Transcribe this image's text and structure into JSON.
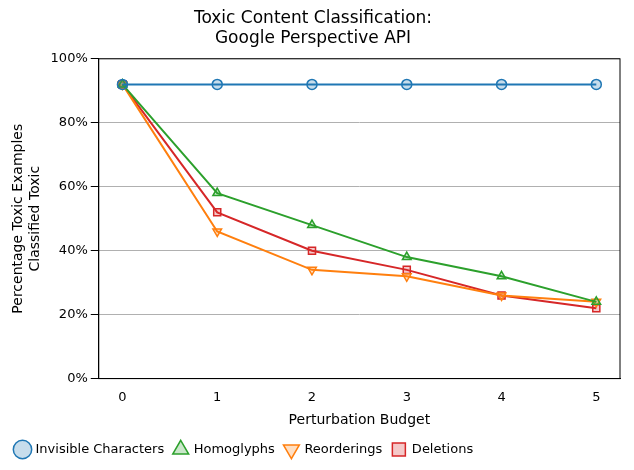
{
  "chart_data": {
    "type": "line",
    "title": "Toxic Content Classification:\nGoogle Perspective API",
    "x_label": "Perturbation Budget",
    "y_label": "Percentage Toxic Examples\nClassified Toxic",
    "x": [
      0,
      1,
      2,
      3,
      4,
      5
    ],
    "series": [
      {
        "name": "Invisible Characters",
        "color": "#1f77b4",
        "marker": "circle",
        "values": [
          92,
          92,
          92,
          92,
          92,
          92
        ]
      },
      {
        "name": "Homoglyphs",
        "color": "#2ca02c",
        "marker": "triangle",
        "values": [
          92,
          58,
          48,
          38,
          32,
          24
        ]
      },
      {
        "name": "Reorderings",
        "color": "#ff7f0e",
        "marker": "triangle_down",
        "values": [
          92,
          46,
          34,
          32,
          26,
          24
        ]
      },
      {
        "name": "Deletions",
        "color": "#d62728",
        "marker": "square",
        "values": [
          92,
          52,
          40,
          34,
          26,
          22
        ]
      }
    ],
    "xlim": [
      -0.25,
      5.25
    ],
    "xticks": [
      0,
      1,
      2,
      3,
      4,
      5
    ],
    "ylim": [
      0,
      100
    ],
    "yticks": [
      {
        "value": 0,
        "label": "0%"
      },
      {
        "value": 20,
        "label": "20%"
      },
      {
        "value": 40,
        "label": "40%"
      },
      {
        "value": 60,
        "label": "60%"
      },
      {
        "value": 80,
        "label": "80%"
      },
      {
        "value": 100,
        "label": "100%"
      }
    ],
    "grid": "y",
    "legend": "lower left"
  }
}
